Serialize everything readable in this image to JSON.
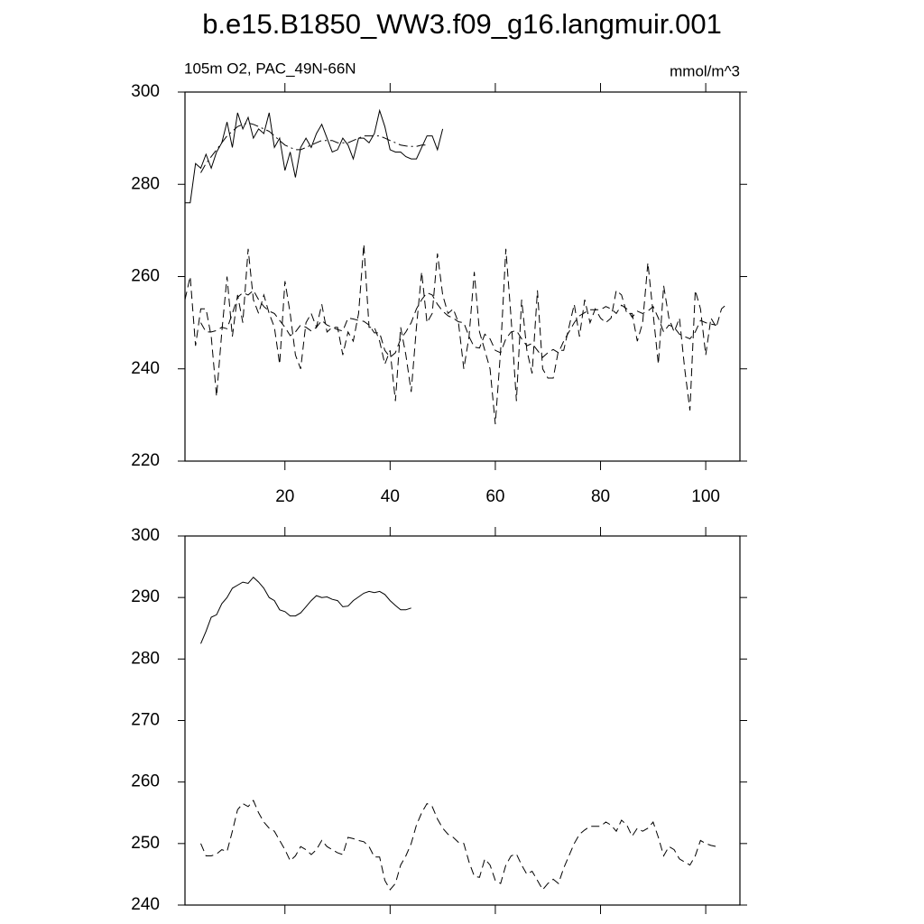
{
  "chart_data": [
    {
      "type": "line",
      "title": "b.e15.B1850_WW3.f09_g16.langmuir.001",
      "left_label": "105m O2, PAC_49N-66N",
      "right_label": "mmol/m^3",
      "x": [
        1,
        2,
        3,
        4,
        5,
        6,
        7,
        8,
        9,
        10,
        11,
        12,
        13,
        14,
        15,
        16,
        17,
        18,
        19,
        20,
        21,
        22,
        23,
        24,
        25,
        26,
        27,
        28,
        29,
        30,
        31,
        32,
        33,
        34,
        35,
        36,
        37,
        38,
        39,
        40,
        41,
        42,
        43,
        44,
        45,
        46,
        47,
        48,
        49,
        50,
        51,
        52,
        53,
        54,
        55,
        56,
        57,
        58,
        59,
        60,
        61,
        62,
        63,
        64,
        65,
        66,
        67,
        68,
        69,
        70,
        71,
        72,
        73,
        74,
        75,
        76,
        77,
        78,
        79,
        80,
        81,
        82,
        83,
        84,
        85,
        86,
        87,
        88,
        89,
        90,
        91,
        92,
        93,
        94,
        95,
        96,
        97,
        98,
        99,
        100,
        101,
        102,
        103,
        104
      ],
      "xlim": [
        1,
        106.5
      ],
      "xticks": [
        20,
        40,
        60,
        80,
        100
      ],
      "xtick_labels": true,
      "ylim": [
        220,
        300
      ],
      "yticks": [
        220,
        240,
        260,
        280,
        300
      ],
      "series": [
        {
          "color": "#000000",
          "dash": "solid",
          "values": [
            276,
            276,
            284.5,
            283.5,
            286.5,
            283.5,
            287,
            289,
            293.5,
            288,
            295.5,
            292,
            294.5,
            290,
            292,
            291,
            295.5,
            288,
            290,
            283,
            287,
            281.5,
            288,
            290,
            288,
            291,
            293,
            290,
            287,
            287.5,
            290,
            288.5,
            285.5,
            290,
            290,
            289,
            291,
            296,
            292.5,
            287.5,
            287,
            287,
            286,
            285.5,
            285.5,
            288,
            290.5,
            290.5,
            287.5,
            292,
            null,
            null,
            null,
            null,
            null,
            null,
            null,
            null,
            null,
            null,
            null,
            null,
            null,
            null,
            null,
            null,
            null,
            null,
            null,
            null,
            null,
            null,
            null,
            null,
            null,
            null,
            null,
            null,
            null,
            null,
            null,
            null,
            null,
            null,
            null,
            null,
            null,
            null,
            null,
            null,
            null,
            null,
            null,
            null,
            null,
            null,
            null,
            null,
            null,
            null,
            null,
            null,
            null,
            null
          ]
        },
        {
          "color": "#000000",
          "dash": "dashdot",
          "values": [
            null,
            null,
            null,
            282.5,
            284.5,
            286,
            287.5,
            289,
            290.5,
            291.5,
            292.5,
            293,
            293.3,
            293,
            292.5,
            292,
            291.5,
            290.5,
            289.5,
            288.5,
            288,
            287.5,
            287.5,
            288,
            288.5,
            289,
            289.5,
            289.5,
            289.5,
            289,
            289,
            289,
            289.5,
            290,
            290.5,
            290.5,
            290.5,
            290.5,
            290,
            289.5,
            289,
            288.5,
            288.3,
            288.2,
            288.2,
            288.5,
            288.5,
            null,
            null,
            null,
            null,
            null,
            null,
            null,
            null,
            null,
            null,
            null,
            null,
            null,
            null,
            null,
            null,
            null,
            null,
            null,
            null,
            null,
            null,
            null,
            null,
            null,
            null,
            null,
            null,
            null,
            null,
            null,
            null,
            null,
            null,
            null,
            null,
            null,
            null,
            null,
            null,
            null,
            null,
            null,
            null,
            null,
            null,
            null,
            null,
            null,
            null,
            null,
            null,
            null,
            null,
            null,
            null,
            null
          ]
        },
        {
          "color": "#000000",
          "dash": "dash",
          "values": [
            255,
            260,
            245,
            253,
            253,
            247,
            234,
            248,
            260,
            247,
            256,
            250,
            266,
            255,
            252,
            256,
            252,
            249,
            241,
            259,
            252,
            243,
            240,
            250,
            252,
            249,
            254,
            248,
            249,
            249,
            243,
            248,
            246,
            252,
            267,
            249,
            249,
            246,
            241,
            244,
            233,
            249,
            243,
            235,
            249,
            261,
            250,
            252,
            265,
            256,
            252,
            253,
            250,
            240,
            247,
            261,
            248,
            244,
            240,
            228,
            244,
            266,
            251,
            233,
            255,
            244,
            239,
            257,
            240,
            238,
            238,
            244,
            244,
            249,
            254,
            247,
            255,
            250,
            253,
            251,
            250,
            251,
            257,
            256,
            252,
            252,
            246,
            250,
            263,
            252,
            241,
            258,
            251,
            248,
            251,
            240,
            231,
            257,
            253,
            243,
            251,
            249,
            253,
            254
          ]
        },
        {
          "color": "#000000",
          "dash": "dash",
          "values": [
            null,
            null,
            null,
            250,
            248,
            248,
            248.3,
            249,
            248.7,
            252,
            255.5,
            256.5,
            256,
            257,
            255,
            253.5,
            252.5,
            252,
            250.5,
            249,
            247.2,
            248,
            249.5,
            249,
            248.2,
            249,
            250.5,
            249.5,
            249,
            248.5,
            248.2,
            251,
            250.8,
            250.5,
            250.3,
            249.5,
            247.8,
            247.8,
            244,
            242.5,
            243.5,
            246.5,
            248,
            250,
            253,
            255,
            256.5,
            256,
            254,
            252.5,
            251.5,
            251,
            250.2,
            250,
            247,
            244.7,
            244.5,
            247.5,
            246.5,
            244,
            243.5,
            246.5,
            248,
            248.3,
            246.5,
            245,
            245.5,
            244,
            242.5,
            243.5,
            244.2,
            243.5,
            246,
            248,
            250,
            251.5,
            252.2,
            252.8,
            252.8,
            252.8,
            253.5,
            253,
            252,
            253.8,
            253,
            251.2,
            252.5,
            252,
            252.5,
            253.5,
            251,
            248,
            249.5,
            249,
            247.5,
            247,
            246.5,
            248,
            250.5,
            250,
            249.7,
            249.5,
            null,
            null
          ]
        }
      ]
    },
    {
      "type": "line",
      "x": [
        1,
        2,
        3,
        4,
        5,
        6,
        7,
        8,
        9,
        10,
        11,
        12,
        13,
        14,
        15,
        16,
        17,
        18,
        19,
        20,
        21,
        22,
        23,
        24,
        25,
        26,
        27,
        28,
        29,
        30,
        31,
        32,
        33,
        34,
        35,
        36,
        37,
        38,
        39,
        40,
        41,
        42,
        43,
        44,
        45,
        46,
        47,
        48,
        49,
        50,
        51,
        52,
        53,
        54,
        55,
        56,
        57,
        58,
        59,
        60,
        61,
        62,
        63,
        64,
        65,
        66,
        67,
        68,
        69,
        70,
        71,
        72,
        73,
        74,
        75,
        76,
        77,
        78,
        79,
        80,
        81,
        82,
        83,
        84,
        85,
        86,
        87,
        88,
        89,
        90,
        91,
        92,
        93,
        94,
        95,
        96,
        97,
        98,
        99,
        100,
        101,
        102,
        103,
        104
      ],
      "xlim": [
        1,
        106.5
      ],
      "xticks": [
        20,
        40,
        60,
        80,
        100
      ],
      "xtick_labels": false,
      "ylim": [
        240,
        300
      ],
      "yticks": [
        240,
        250,
        260,
        270,
        280,
        290,
        300
      ],
      "series": [
        {
          "color": "#000000",
          "dash": "solid",
          "values": [
            null,
            null,
            null,
            282.5,
            284.5,
            286.8,
            287.2,
            289,
            290,
            291.5,
            292,
            292.5,
            292.3,
            293.3,
            292.5,
            291.5,
            290,
            289.5,
            288,
            287.7,
            287,
            287,
            287.5,
            288.5,
            289.5,
            290.3,
            290,
            290.1,
            289.7,
            289.5,
            288.5,
            288.6,
            289.5,
            290.1,
            290.7,
            291,
            290.8,
            291,
            290.5,
            289.5,
            288.7,
            288,
            288,
            288.3,
            null,
            null,
            null,
            null,
            null,
            null,
            null,
            null,
            null,
            null,
            null,
            null,
            null,
            null,
            null,
            null,
            null,
            null,
            null,
            null,
            null,
            null,
            null,
            null,
            null,
            null,
            null,
            null,
            null,
            null,
            null,
            null,
            null,
            null,
            null,
            null,
            null,
            null,
            null,
            null,
            null,
            null,
            null,
            null,
            null,
            null,
            null,
            null,
            null,
            null,
            null,
            null,
            null,
            null,
            null,
            null,
            null,
            null,
            null,
            null
          ]
        },
        {
          "color": "#000000",
          "dash": "dash",
          "values": [
            null,
            null,
            null,
            250,
            248,
            248,
            248.3,
            249,
            248.7,
            252,
            255.5,
            256.5,
            256,
            257,
            255,
            253.5,
            252.5,
            252,
            250.5,
            249,
            247.2,
            248,
            249.5,
            249,
            248.2,
            249,
            250.5,
            249.5,
            249,
            248.5,
            248.2,
            251,
            250.8,
            250.5,
            250.3,
            249.5,
            247.8,
            247.8,
            244,
            242.5,
            243.5,
            246.5,
            248,
            250,
            253,
            255,
            256.5,
            256,
            254,
            252.5,
            251.5,
            251,
            250.2,
            250,
            247,
            244.7,
            244.5,
            247.5,
            246.5,
            244,
            243.5,
            246.5,
            248,
            248.3,
            246.5,
            245,
            245.5,
            244,
            242.5,
            243.5,
            244.2,
            243.5,
            246,
            248,
            250,
            251.5,
            252.2,
            252.8,
            252.8,
            252.8,
            253.5,
            253,
            252,
            253.8,
            253,
            251.2,
            252.5,
            252,
            252.5,
            253.5,
            251,
            248,
            249.5,
            249,
            247.5,
            247,
            246.5,
            248,
            250.5,
            250,
            249.7,
            249.5,
            null,
            null
          ]
        }
      ]
    }
  ]
}
